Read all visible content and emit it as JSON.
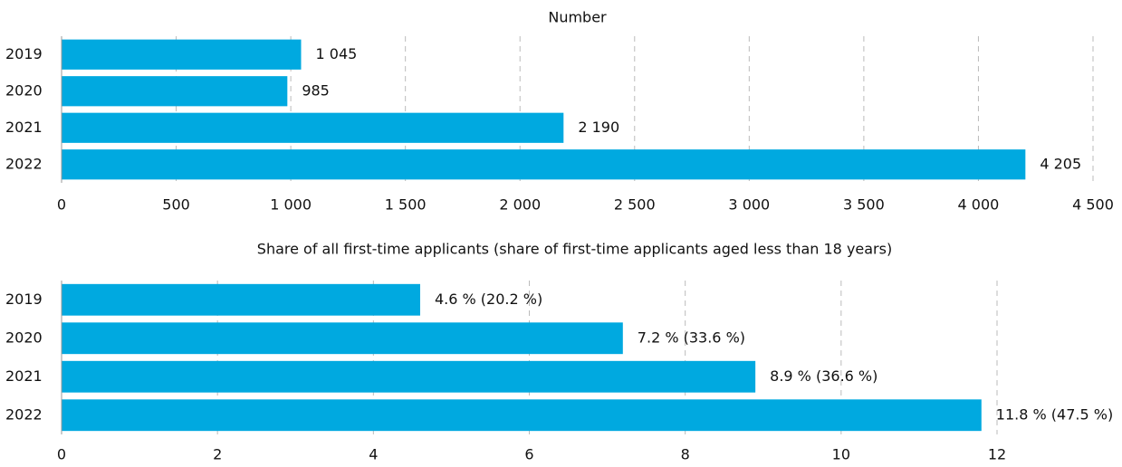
{
  "chart_data": [
    {
      "type": "barh",
      "title": "Number",
      "categories": [
        "2019",
        "2020",
        "2021",
        "2022"
      ],
      "values": [
        1045,
        985,
        2190,
        4205
      ],
      "value_labels": [
        "1 045",
        "985",
        "2 190",
        "4 205"
      ],
      "color": "#00a9e0",
      "xlim": [
        0,
        4500
      ],
      "xticks": [
        0,
        500,
        {
          "value": 1000,
          "label": "1 000"
        },
        {
          "value": 1500,
          "label": "1 500"
        },
        {
          "value": 2000,
          "label": "2 000"
        },
        {
          "value": 2500,
          "label": "2 500"
        },
        {
          "value": 3000,
          "label": "3 000"
        },
        {
          "value": 3500,
          "label": "3 500"
        },
        {
          "value": 4000,
          "label": "4 000"
        },
        {
          "value": 4500,
          "label": "4 500"
        }
      ],
      "grid": true
    },
    {
      "type": "barh",
      "title": "Share of all first-time applicants (share of first-time applicants aged less than 18 years)",
      "categories": [
        "2019",
        "2020",
        "2021",
        "2022"
      ],
      "values": [
        4.6,
        7.2,
        8.9,
        11.8
      ],
      "value_labels": [
        "4.6 % (20.2 %)",
        "7.2 % (33.6 %)",
        "8.9 % (36.6 %)",
        "11.8 % (47.5 %)"
      ],
      "color": "#00a9e0",
      "xlim": [
        0,
        12
      ],
      "xticks": [
        0,
        2,
        4,
        6,
        8,
        10,
        12
      ],
      "grid": true
    }
  ]
}
